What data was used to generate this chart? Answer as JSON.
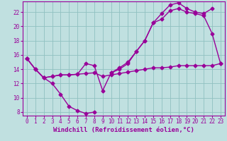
{
  "title": "",
  "xlabel": "Windchill (Refroidissement éolien,°C)",
  "ylabel": "",
  "xlim": [
    -0.5,
    23.5
  ],
  "ylim": [
    7.5,
    23.5
  ],
  "yticks": [
    8,
    10,
    12,
    14,
    16,
    18,
    20,
    22
  ],
  "xticks": [
    0,
    1,
    2,
    3,
    4,
    5,
    6,
    7,
    8,
    9,
    10,
    11,
    12,
    13,
    14,
    15,
    16,
    17,
    18,
    19,
    20,
    21,
    22,
    23
  ],
  "bg_color": "#c0e0e0",
  "grid_color": "#90c0c0",
  "line_color": "#990099",
  "curves": [
    {
      "x": [
        0,
        1,
        2,
        3,
        4,
        5,
        6,
        7,
        8
      ],
      "y": [
        15.5,
        14.0,
        12.8,
        12.0,
        10.5,
        8.8,
        8.2,
        7.8,
        8.0
      ]
    },
    {
      "x": [
        0,
        1,
        2,
        3,
        4,
        5,
        6,
        7,
        8,
        9,
        10,
        11,
        12,
        13,
        14,
        15,
        16,
        17,
        18,
        19,
        20,
        21,
        22,
        23
      ],
      "y": [
        15.5,
        14.0,
        12.8,
        13.0,
        13.2,
        13.2,
        13.3,
        13.4,
        13.5,
        13.0,
        13.2,
        13.4,
        13.6,
        13.8,
        14.0,
        14.2,
        14.2,
        14.3,
        14.5,
        14.5,
        14.5,
        14.5,
        14.5,
        14.8
      ]
    },
    {
      "x": [
        0,
        1,
        2,
        3,
        4,
        5,
        6,
        7,
        8,
        9,
        10,
        11,
        12,
        13,
        14,
        15,
        16,
        17,
        18,
        19,
        20,
        21,
        22,
        23
      ],
      "y": [
        15.5,
        14.0,
        12.8,
        13.0,
        13.2,
        13.2,
        13.3,
        14.8,
        14.5,
        11.0,
        13.5,
        14.0,
        14.8,
        16.5,
        18.0,
        20.5,
        21.0,
        22.2,
        22.5,
        22.0,
        21.8,
        21.5,
        19.0,
        14.8
      ]
    },
    {
      "x": [
        10,
        11,
        12,
        13,
        14,
        15,
        16,
        17,
        18,
        19,
        20,
        21,
        22
      ],
      "y": [
        13.5,
        14.2,
        15.0,
        16.5,
        18.0,
        20.5,
        21.8,
        23.0,
        23.3,
        22.5,
        22.0,
        21.8,
        22.5
      ]
    }
  ],
  "font_family": "monospace",
  "marker": "D",
  "marker_size": 2.5,
  "line_width": 1.0,
  "xlabel_fontsize": 6.5,
  "tick_fontsize": 5.5
}
